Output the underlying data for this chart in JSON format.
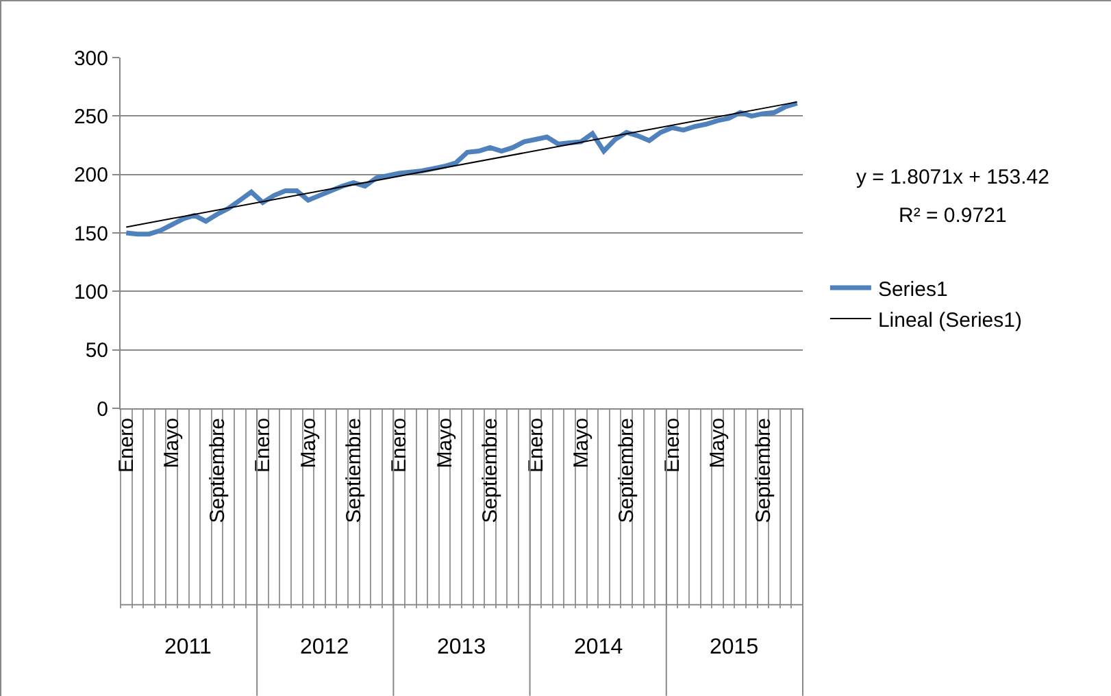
{
  "chart_data": {
    "type": "line",
    "categories": [
      "Enero",
      null,
      null,
      null,
      "Mayo",
      null,
      null,
      null,
      "Septiembre",
      null,
      null,
      null,
      "Enero",
      null,
      null,
      null,
      "Mayo",
      null,
      null,
      null,
      "Septiembre",
      null,
      null,
      null,
      "Enero",
      null,
      null,
      null,
      "Mayo",
      null,
      null,
      null,
      "Septiembre",
      null,
      null,
      null,
      "Enero",
      null,
      null,
      null,
      "Mayo",
      null,
      null,
      null,
      "Septiembre",
      null,
      null,
      null,
      "Enero",
      null,
      null,
      null,
      "Mayo",
      null,
      null,
      null,
      "Septiembre",
      null,
      null,
      null
    ],
    "series": [
      {
        "name": "Series1",
        "color": "#4f81bd",
        "values": [
          150,
          149,
          149,
          152,
          157,
          162,
          165,
          160,
          166,
          171,
          178,
          185,
          176,
          182,
          186,
          186,
          178,
          182,
          186,
          190,
          193,
          190,
          197,
          199,
          201,
          202,
          203,
          205,
          207,
          210,
          219,
          220,
          223,
          220,
          223,
          228,
          230,
          232,
          226,
          227,
          228,
          235,
          220,
          230,
          236,
          233,
          229,
          236,
          240,
          238,
          241,
          243,
          246,
          248,
          253,
          250,
          252,
          253,
          258,
          261
        ]
      },
      {
        "name": "Lineal (Series1)",
        "color": "#000000",
        "values": [
          155,
          null,
          null,
          null,
          null,
          null,
          null,
          null,
          null,
          null,
          null,
          null,
          null,
          null,
          null,
          null,
          null,
          null,
          null,
          null,
          null,
          null,
          null,
          null,
          null,
          null,
          null,
          null,
          null,
          null,
          null,
          null,
          null,
          null,
          null,
          null,
          null,
          null,
          null,
          null,
          null,
          null,
          null,
          null,
          null,
          null,
          null,
          null,
          null,
          null,
          null,
          null,
          null,
          null,
          null,
          null,
          null,
          null,
          null,
          262
        ]
      }
    ],
    "ylim": [
      0,
      300
    ],
    "yticks": [
      0,
      50,
      100,
      150,
      200,
      250,
      300
    ],
    "grid": "y",
    "legend": "right",
    "marker": "none",
    "line_style": "solid",
    "annotations": [
      "y = 1.8071x + 153.42",
      "R² = 0.9721",
      "2011",
      "2012",
      "2013",
      "2014",
      "2015"
    ]
  }
}
